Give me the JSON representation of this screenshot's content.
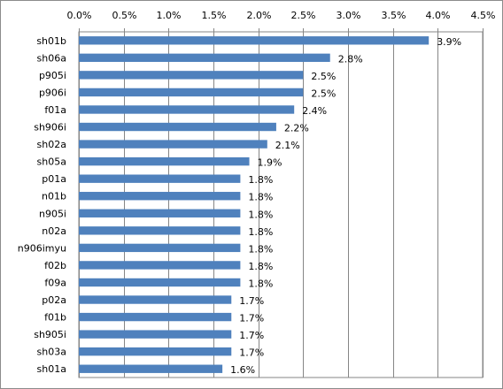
{
  "chart_data": {
    "type": "bar",
    "orientation": "horizontal",
    "categories": [
      "sh01b",
      "sh06a",
      "p905i",
      "p906i",
      "f01a",
      "sh906i",
      "sh02a",
      "sh05a",
      "p01a",
      "n01b",
      "n905i",
      "n02a",
      "n906imyu",
      "f02b",
      "f09a",
      "p02a",
      "f01b",
      "sh905i",
      "sh03a",
      "sh01a"
    ],
    "values": [
      3.9,
      2.8,
      2.5,
      2.5,
      2.4,
      2.2,
      2.1,
      1.9,
      1.8,
      1.8,
      1.8,
      1.8,
      1.8,
      1.8,
      1.8,
      1.7,
      1.7,
      1.7,
      1.7,
      1.6
    ],
    "value_labels": [
      "3.9%",
      "2.8%",
      "2.5%",
      "2.5%",
      "2.4%",
      "2.2%",
      "2.1%",
      "1.9%",
      "1.8%",
      "1.8%",
      "1.8%",
      "1.8%",
      "1.8%",
      "1.8%",
      "1.8%",
      "1.7%",
      "1.7%",
      "1.7%",
      "1.7%",
      "1.6%"
    ],
    "x_ticks": [
      "0.0%",
      "0.5%",
      "1.0%",
      "1.5%",
      "2.0%",
      "2.5%",
      "3.0%",
      "3.5%",
      "4.0%",
      "4.5%"
    ],
    "xlim": [
      0,
      4.5
    ],
    "x_axis_position": "top",
    "grid": true,
    "bar_color": "#4f81bd",
    "title": "",
    "xlabel": "",
    "ylabel": ""
  }
}
